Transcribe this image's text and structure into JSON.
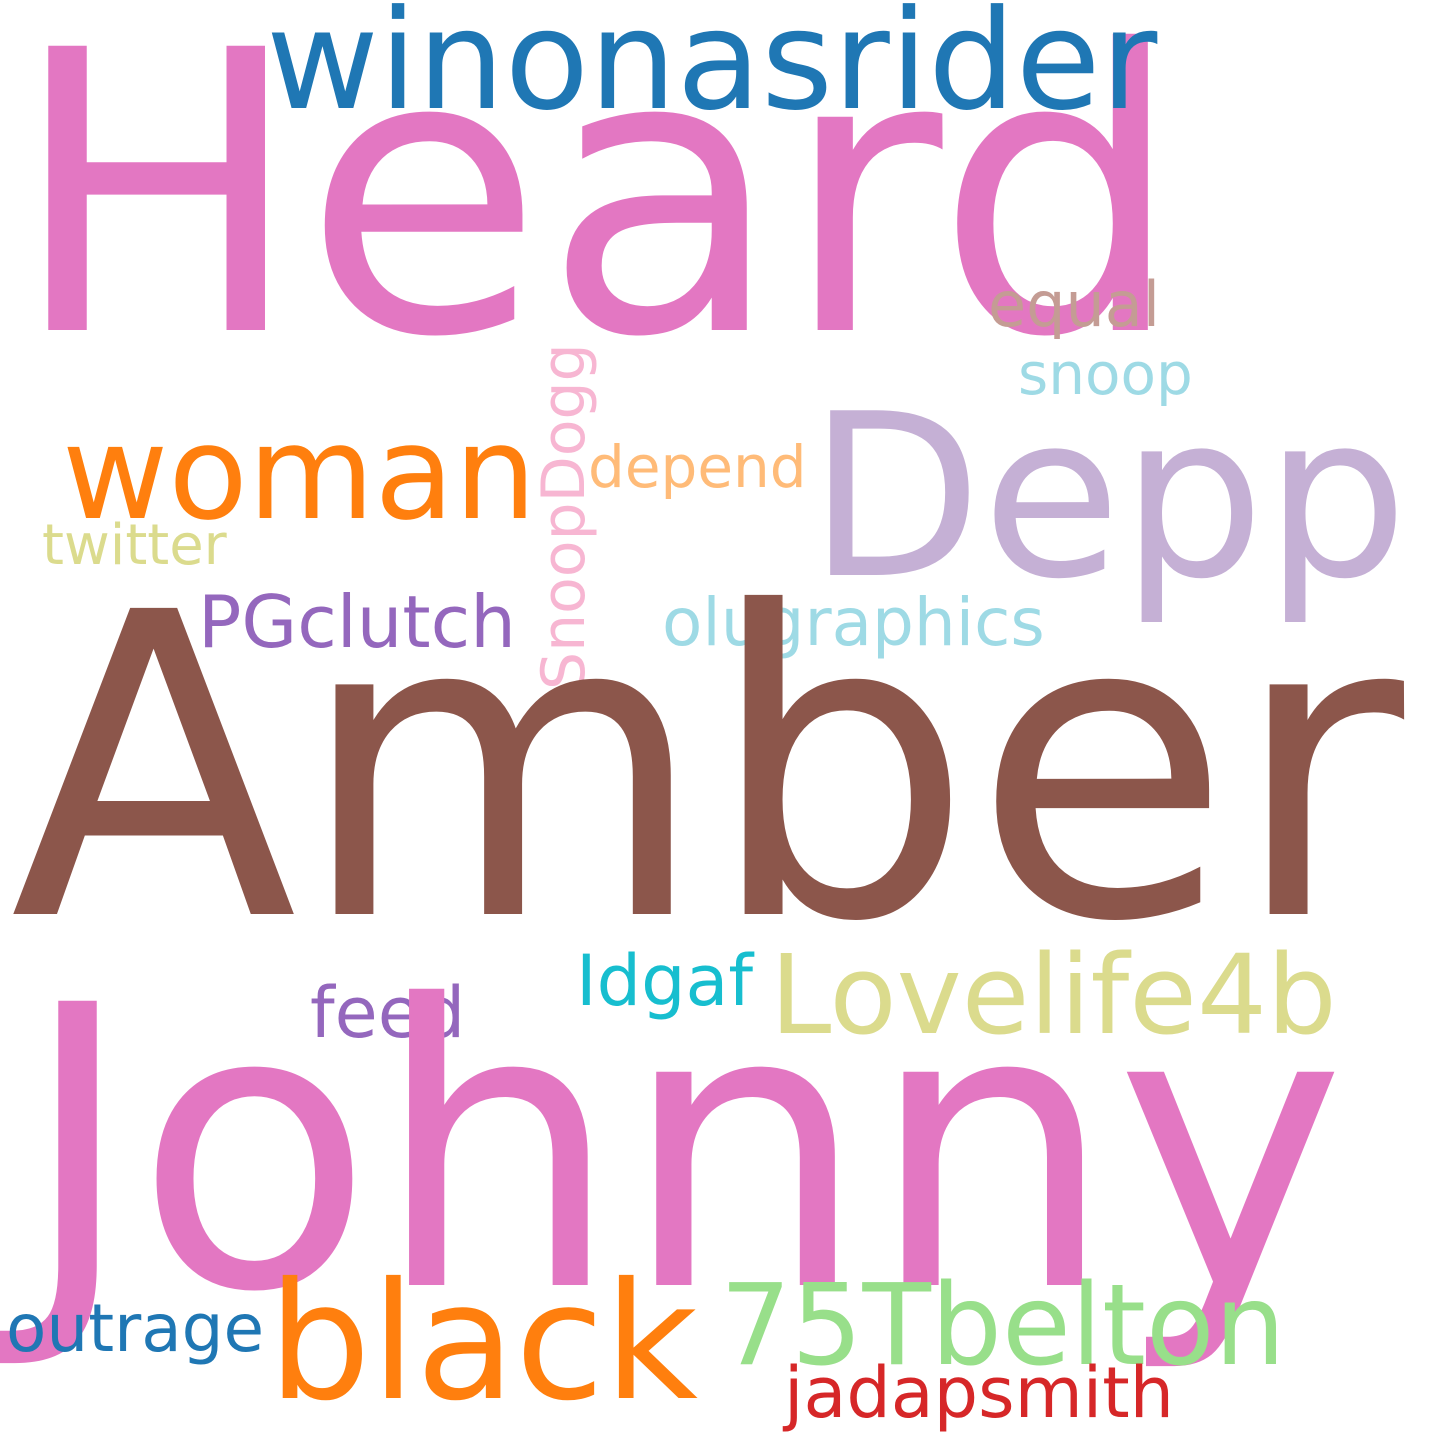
{
  "word_cloud": {
    "background_color": "#ffffff",
    "words": {
      "heard": {
        "text": "Heard",
        "color": "#e377c2"
      },
      "amber": {
        "text": "Amber",
        "color": "#8c564b"
      },
      "johnny": {
        "text": "Johnny",
        "color": "#e377c2"
      },
      "depp": {
        "text": "Depp",
        "color": "#c5b0d5"
      },
      "winonasrider": {
        "text": "winonasrider",
        "color": "#1f77b4"
      },
      "woman": {
        "text": "woman",
        "color": "#ff7f0e"
      },
      "black": {
        "text": "black",
        "color": "#ff7f0e"
      },
      "lovelife4b": {
        "text": "Lovelife4b",
        "color": "#dbdb8d"
      },
      "75tbelton": {
        "text": "75Tbelton",
        "color": "#98df8a"
      },
      "olugraphics": {
        "text": "olugraphics",
        "color": "#9edae5"
      },
      "pgclutch": {
        "text": "PGclutch",
        "color": "#9467bd"
      },
      "twitter": {
        "text": "twitter",
        "color": "#dbdb8d"
      },
      "depend": {
        "text": "depend",
        "color": "#ffbb78"
      },
      "snoop": {
        "text": "snoop",
        "color": "#9edae5"
      },
      "equal": {
        "text": "equal",
        "color": "#c49c94"
      },
      "snoopdogg": {
        "text": "SnoopDogg",
        "color": "#f7b6d2"
      },
      "idgaf": {
        "text": "Idgaf",
        "color": "#17becf"
      },
      "feed": {
        "text": "feed",
        "color": "#9467bd"
      },
      "outrage": {
        "text": "outrage",
        "color": "#1f77b4"
      },
      "jadapsmith": {
        "text": "jadapsmith",
        "color": "#d62728"
      }
    }
  }
}
